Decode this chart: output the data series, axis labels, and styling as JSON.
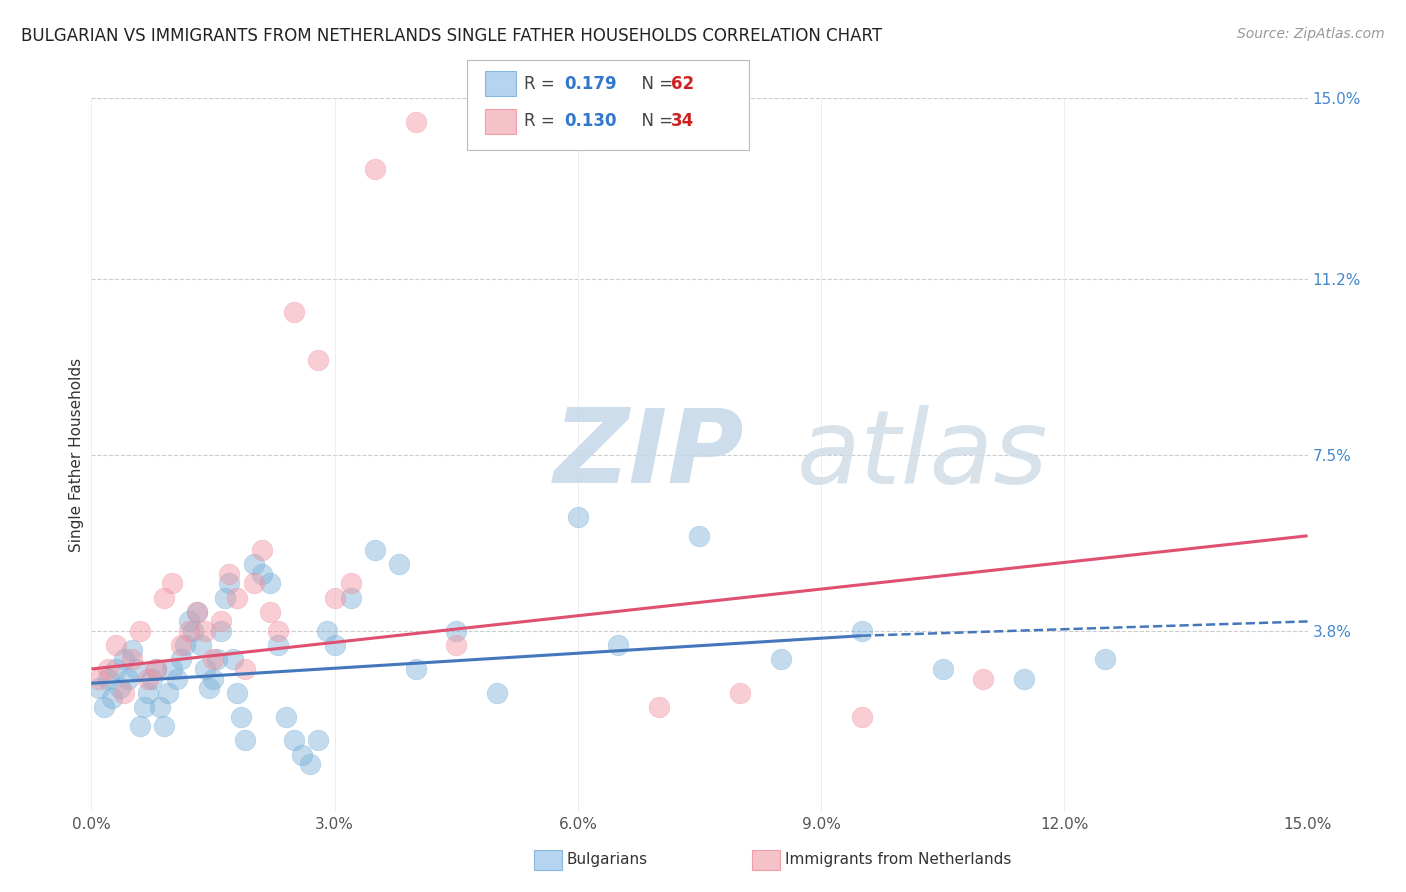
{
  "title": "BULGARIAN VS IMMIGRANTS FROM NETHERLANDS SINGLE FATHER HOUSEHOLDS CORRELATION CHART",
  "source": "Source: ZipAtlas.com",
  "ylabel": "Single Father Households",
  "xlim": [
    0.0,
    15.0
  ],
  "ylim": [
    0.0,
    15.0
  ],
  "ytick_labels": [
    "15.0%",
    "11.2%",
    "7.5%",
    "3.8%"
  ],
  "ytick_values": [
    15.0,
    11.2,
    7.5,
    3.8
  ],
  "xtick_values": [
    0.0,
    3.0,
    6.0,
    9.0,
    12.0,
    15.0
  ],
  "bg_color": "#ffffff",
  "grid_color": "#cccccc",
  "blue_scatter_x": [
    0.1,
    0.15,
    0.2,
    0.25,
    0.3,
    0.35,
    0.4,
    0.45,
    0.5,
    0.55,
    0.6,
    0.65,
    0.7,
    0.75,
    0.8,
    0.85,
    0.9,
    0.95,
    1.0,
    1.05,
    1.1,
    1.15,
    1.2,
    1.25,
    1.3,
    1.35,
    1.4,
    1.45,
    1.5,
    1.55,
    1.6,
    1.65,
    1.7,
    1.75,
    1.8,
    1.85,
    1.9,
    2.0,
    2.1,
    2.2,
    2.3,
    2.4,
    2.5,
    2.6,
    2.7,
    2.8,
    2.9,
    3.0,
    3.2,
    3.5,
    3.8,
    4.0,
    4.5,
    5.0,
    6.0,
    6.5,
    7.5,
    8.5,
    9.5,
    10.5,
    11.5,
    12.5
  ],
  "blue_scatter_y": [
    2.6,
    2.2,
    2.8,
    2.4,
    3.0,
    2.6,
    3.2,
    2.8,
    3.4,
    3.0,
    1.8,
    2.2,
    2.5,
    2.8,
    3.0,
    2.2,
    1.8,
    2.5,
    3.0,
    2.8,
    3.2,
    3.5,
    4.0,
    3.8,
    4.2,
    3.5,
    3.0,
    2.6,
    2.8,
    3.2,
    3.8,
    4.5,
    4.8,
    3.2,
    2.5,
    2.0,
    1.5,
    5.2,
    5.0,
    4.8,
    3.5,
    2.0,
    1.5,
    1.2,
    1.0,
    1.5,
    3.8,
    3.5,
    4.5,
    5.5,
    5.2,
    3.0,
    3.8,
    2.5,
    6.2,
    3.5,
    5.8,
    3.2,
    3.8,
    3.0,
    2.8,
    3.2
  ],
  "pink_scatter_x": [
    0.1,
    0.2,
    0.3,
    0.4,
    0.5,
    0.6,
    0.7,
    0.8,
    0.9,
    1.0,
    1.1,
    1.2,
    1.3,
    1.4,
    1.5,
    1.6,
    1.7,
    1.8,
    1.9,
    2.0,
    2.1,
    2.2,
    2.3,
    2.5,
    2.8,
    3.5,
    4.0,
    4.5,
    7.0,
    8.0,
    9.5,
    11.0,
    3.0,
    3.2
  ],
  "pink_scatter_y": [
    2.8,
    3.0,
    3.5,
    2.5,
    3.2,
    3.8,
    2.8,
    3.0,
    4.5,
    4.8,
    3.5,
    3.8,
    4.2,
    3.8,
    3.2,
    4.0,
    5.0,
    4.5,
    3.0,
    4.8,
    5.5,
    4.2,
    3.8,
    10.5,
    9.5,
    13.5,
    14.5,
    3.5,
    2.2,
    2.5,
    2.0,
    2.8,
    4.5,
    4.8
  ],
  "blue_line_x0": 0.0,
  "blue_line_x1": 9.5,
  "blue_line_y0": 2.7,
  "blue_line_y1": 3.7,
  "blue_dash_x0": 9.5,
  "blue_dash_x1": 15.0,
  "blue_dash_y0": 3.7,
  "blue_dash_y1": 4.0,
  "pink_line_x0": 0.0,
  "pink_line_x1": 15.0,
  "pink_line_y0": 3.0,
  "pink_line_y1": 5.8,
  "blue_color": "#7ab0d9",
  "pink_color": "#f0929e",
  "blue_fill_color": "#aaccee",
  "pink_fill_color": "#f4b8c0",
  "blue_line_color": "#4477bb",
  "pink_line_color": "#e05070",
  "legend_R_blue": "0.179",
  "legend_N_blue": "62",
  "legend_R_pink": "0.130",
  "legend_N_pink": "34",
  "title_fontsize": 12,
  "source_fontsize": 10,
  "tick_fontsize": 11,
  "ylabel_fontsize": 11,
  "legend_fontsize": 12
}
